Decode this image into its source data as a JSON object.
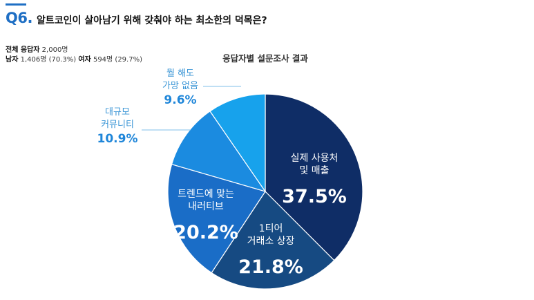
{
  "header": {
    "question_number": "Q6.",
    "question_text": "알트코인이 살아남기 위해 갖춰야 하는 최소한의 덕목은?",
    "respondents": {
      "total_label": "전체 응답자",
      "total_value": "2,000명",
      "male_label": "남자",
      "male_value": "1,406명 (70.3%)",
      "female_label": "여자",
      "female_value": "594명 (29.7%)"
    }
  },
  "chart_data": {
    "type": "pie",
    "title": "응답자별 설문조사 결과",
    "slices": [
      {
        "label_lines": [
          "실제 사용처",
          "및 매출"
        ],
        "value": 37.5,
        "value_label": "37.5%",
        "color": "#0f2d66",
        "label_position": "inside"
      },
      {
        "label_lines": [
          "1티어",
          "거래소 상장"
        ],
        "value": 21.8,
        "value_label": "21.8%",
        "color": "#164a82",
        "label_position": "inside"
      },
      {
        "label_lines": [
          "트렌드에 맞는",
          "내러티브"
        ],
        "value": 20.2,
        "value_label": "20.2%",
        "color": "#1a6dc7",
        "label_position": "inside"
      },
      {
        "label_lines": [
          "대규모",
          "커뮤니티"
        ],
        "value": 10.9,
        "value_label": "10.9%",
        "color": "#1b8be0",
        "label_position": "outside"
      },
      {
        "label_lines": [
          "뭘 해도",
          "가망 없음"
        ],
        "value": 9.6,
        "value_label": "9.6%",
        "color": "#17a2ec",
        "label_position": "outside"
      }
    ]
  }
}
